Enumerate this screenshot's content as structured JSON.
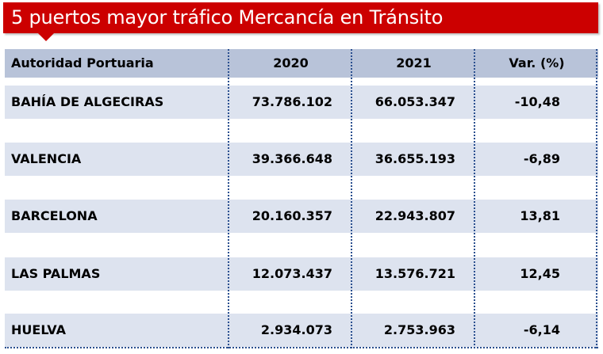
{
  "title": "5 puertos mayor tráfico Mercancía en Tránsito",
  "colors": {
    "banner": "#cc0000",
    "header_bg": "#b8c3d9",
    "row_bg": "#dde3ef",
    "divider": "#2a4f8f"
  },
  "table": {
    "headers": [
      "Autoridad Portuaria",
      "2020",
      "2021",
      "Var. (%)"
    ],
    "rows": [
      {
        "port": "BAHÍA DE ALGECIRAS",
        "y2020": "73.786.102",
        "y2021": "66.053.347",
        "var": "-10,48"
      },
      {
        "port": "VALENCIA",
        "y2020": "39.366.648",
        "y2021": "36.655.193",
        "var": "-6,89"
      },
      {
        "port": "BARCELONA",
        "y2020": "20.160.357",
        "y2021": "22.943.807",
        "var": "13,81"
      },
      {
        "port": "LAS PALMAS",
        "y2020": "12.073.437",
        "y2021": "13.576.721",
        "var": "12,45"
      },
      {
        "port": "HUELVA",
        "y2020": "2.934.073",
        "y2021": "2.753.963",
        "var": "-6,14"
      }
    ]
  }
}
